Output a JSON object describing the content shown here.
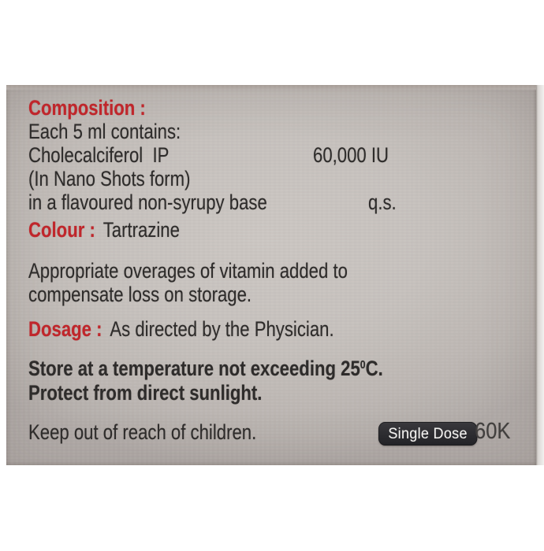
{
  "panel": {
    "accent_color": "#c0262b",
    "text_color": "#2e2c2b",
    "composition": {
      "heading": "Composition :",
      "contains_line": "Each 5 ml contains:",
      "ingredient": "Cholecalciferol  IP",
      "ingredient_value": "60,000 IU",
      "form_note": "(In Nano Shots form)",
      "base_note": "in a flavoured non-syrupy base",
      "base_value": "q.s."
    },
    "colour": {
      "label": "Colour :",
      "value": "Tartrazine"
    },
    "overage_note_line1": "Appropriate overages of vitamin added to",
    "overage_note_line2": "compensate loss on storage.",
    "dosage": {
      "label": "Dosage :",
      "value": "As directed by the Physician."
    },
    "storage": {
      "line1_prefix": "Store at a temperature not exceeding 25",
      "line1_sup": "0",
      "line1_suffix": "C.",
      "line2": "Protect from direct sunlight."
    },
    "warning": "Keep out of reach of children.",
    "badge": {
      "label": "Single Dose",
      "bg_color": "#2c2c30",
      "text_color": "#f4f3f1"
    },
    "strength": "60K"
  }
}
